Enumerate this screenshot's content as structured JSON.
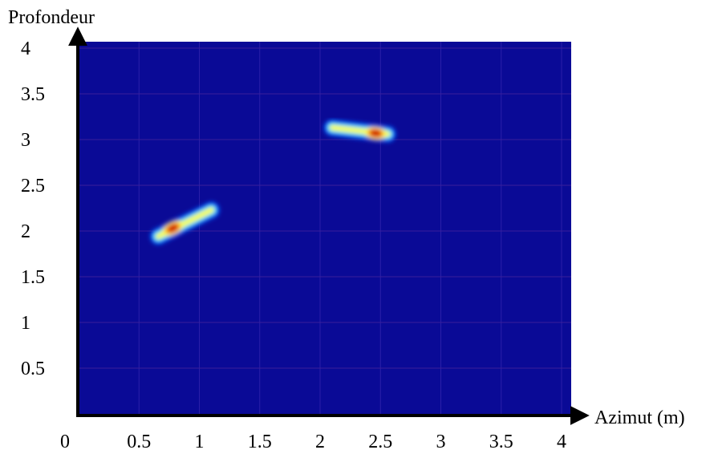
{
  "chart_data": {
    "type": "heatmap",
    "title": "",
    "xlabel": "Azimut (m)",
    "ylabel": "Profondeur",
    "xlim": [
      0,
      4
    ],
    "ylim": [
      0,
      4
    ],
    "x_ticks": [
      "0",
      "0.5",
      "1",
      "1.5",
      "2",
      "2.5",
      "3",
      "3.5",
      "4"
    ],
    "y_ticks": [
      "0.5",
      "1",
      "1.5",
      "2",
      "2.5",
      "3",
      "3.5",
      "4"
    ],
    "grid": true,
    "background_color": "#0a0a96",
    "colormap": [
      "#0a0a96",
      "#0a55ff",
      "#00e0ff",
      "#ffff3c",
      "#ff8000",
      "#c80000"
    ],
    "hotspots": [
      {
        "x_start": 0.66,
        "y_start": 1.94,
        "x_end": 1.1,
        "y_end": 2.23,
        "peak_x": 0.78,
        "peak_y": 2.03,
        "intensity": 1.0
      },
      {
        "x_start": 2.1,
        "y_start": 3.13,
        "x_end": 2.56,
        "y_end": 3.06,
        "peak_x": 2.46,
        "peak_y": 3.07,
        "intensity": 1.0
      }
    ]
  }
}
